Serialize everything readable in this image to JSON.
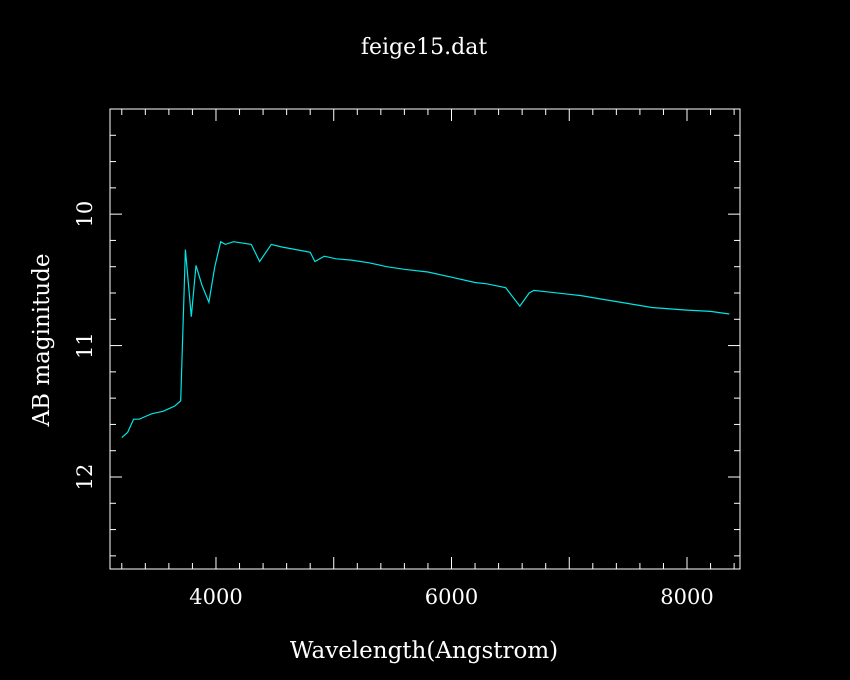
{
  "chart_data": {
    "type": "line",
    "title": "feige15.dat",
    "xlabel": "Wavelength(Angstrom)",
    "ylabel": "AB maginitude",
    "xlim": [
      3100,
      8450
    ],
    "ylim": [
      12.7,
      9.2
    ],
    "y_inverted": true,
    "grid": false,
    "x_ticks": [
      4000,
      6000,
      8000
    ],
    "y_ticks": [
      10,
      11,
      12
    ],
    "line_color": "#00e5e5",
    "axis_color": "#ffffff",
    "background": "#000000",
    "series": [
      {
        "x": [
          3200,
          3250,
          3300,
          3350,
          3400,
          3450,
          3500,
          3550,
          3600,
          3650,
          3700,
          3740,
          3790,
          3830,
          3880,
          3940,
          3990,
          4040,
          4080,
          4150,
          4300,
          4370,
          4470,
          4560,
          4680,
          4800,
          4840,
          4920,
          5020,
          5150,
          5300,
          5450,
          5600,
          5800,
          6000,
          6200,
          6300,
          6460,
          6580,
          6660,
          6700,
          6800,
          7000,
          7100,
          7300,
          7500,
          7700,
          8000,
          8200,
          8360
        ],
        "y": [
          11.7,
          11.66,
          11.56,
          11.56,
          11.54,
          11.52,
          11.51,
          11.5,
          11.48,
          11.46,
          11.42,
          10.27,
          10.78,
          10.39,
          10.54,
          10.67,
          10.4,
          10.21,
          10.23,
          10.21,
          10.23,
          10.36,
          10.23,
          10.25,
          10.27,
          10.29,
          10.36,
          10.32,
          10.34,
          10.35,
          10.37,
          10.4,
          10.42,
          10.44,
          10.48,
          10.52,
          10.53,
          10.56,
          10.7,
          10.6,
          10.58,
          10.59,
          10.61,
          10.62,
          10.65,
          10.68,
          10.71,
          10.73,
          10.74,
          10.76
        ]
      }
    ]
  }
}
